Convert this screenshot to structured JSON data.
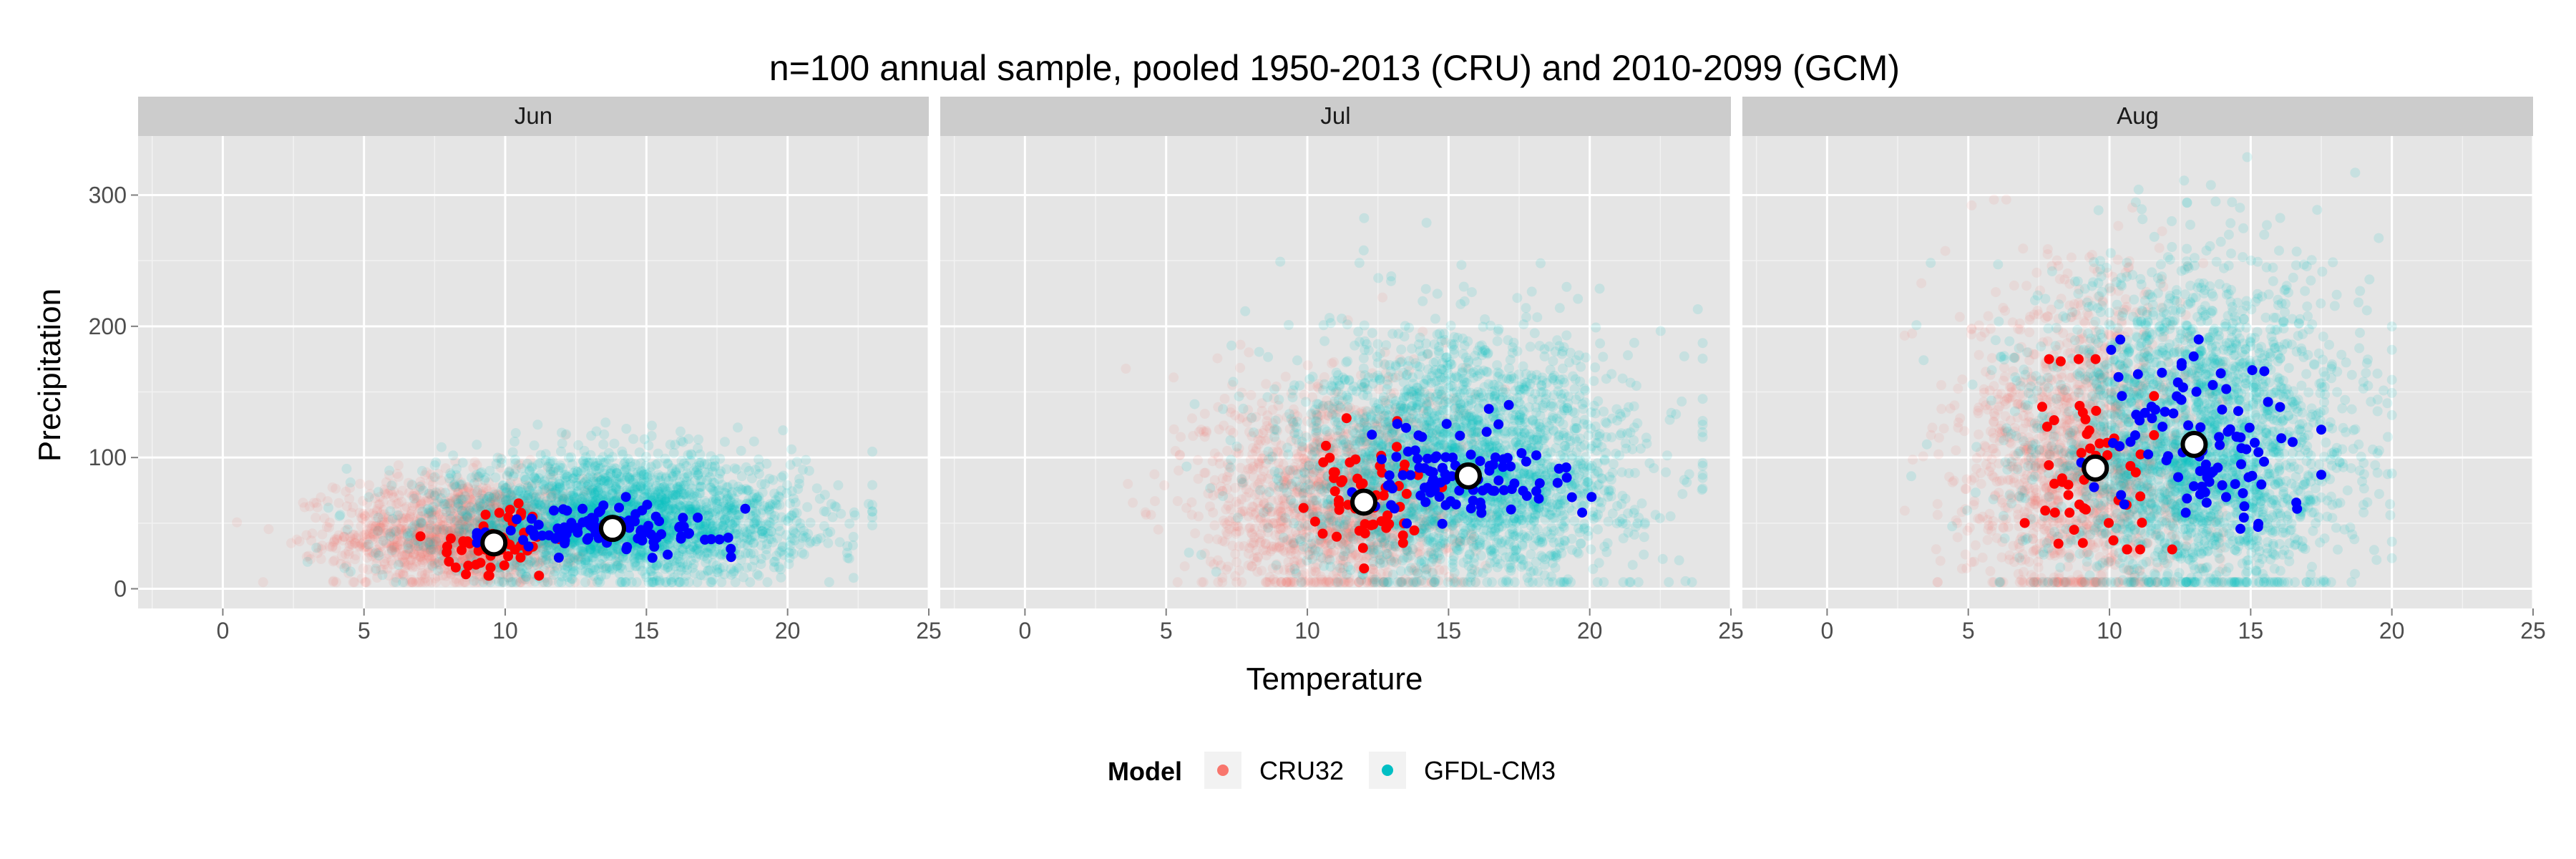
{
  "chart_data": {
    "type": "scatter",
    "title": "n=100 annual sample, pooled 1950-2013 (CRU) and 2010-2099 (GCM)",
    "xlabel": "Temperature",
    "ylabel": "Precipitation",
    "xlim": [
      -3,
      25
    ],
    "ylim": [
      -15,
      345
    ],
    "x_ticks": [
      0,
      5,
      10,
      15,
      20,
      25
    ],
    "y_ticks": [
      0,
      100,
      200,
      300
    ],
    "grid": true,
    "legend": {
      "title": "Model",
      "placement": "bottom",
      "entries": [
        {
          "label": "CRU32",
          "color": "#F8766D"
        },
        {
          "label": "GFDL-CM3",
          "color": "#00BFC4"
        }
      ]
    },
    "colors": {
      "cru_background": "#F8766D",
      "gcm_background": "#00BFC4",
      "cru_sample": "#FF0000",
      "gcm_sample": "#0000FF",
      "panel_background": "#E5E5E5",
      "strip_background": "#CCCCCC"
    },
    "panels": [
      {
        "name": "Jun",
        "series": [
          {
            "name": "CRU32",
            "type": "cloud",
            "mean": [
              8.5,
              40
            ],
            "sd": [
              2.2,
              18
            ],
            "range_x": [
              0.5,
              14
            ],
            "range_y": [
              5,
              150
            ],
            "count": 1500
          },
          {
            "name": "GFDL-CM3",
            "type": "cloud",
            "mean": [
              14,
              50
            ],
            "sd": [
              3.2,
              20
            ],
            "range_x": [
              3,
              23
            ],
            "range_y": [
              5,
              170
            ],
            "count": 2800
          },
          {
            "name": "CRU32",
            "type": "sample",
            "mean": [
              9.6,
              35
            ],
            "sd": [
              1,
              12
            ],
            "range_x": [
              7,
              12
            ],
            "range_y": [
              10,
              70
            ],
            "count": 60
          },
          {
            "name": "GFDL-CM3",
            "type": "sample",
            "mean": [
              13.8,
              46
            ],
            "sd": [
              2.2,
              8
            ],
            "range_x": [
              9,
              18.5
            ],
            "range_y": [
              20,
              70
            ],
            "count": 100
          }
        ],
        "centroids": [
          {
            "x": 9.6,
            "y": 35
          },
          {
            "x": 13.8,
            "y": 46
          }
        ]
      },
      {
        "name": "Jul",
        "series": [
          {
            "name": "CRU32",
            "type": "cloud",
            "mean": [
              11,
              65
            ],
            "sd": [
              2.3,
              38
            ],
            "range_x": [
              1,
              17
            ],
            "range_y": [
              5,
              290
            ],
            "count": 1500
          },
          {
            "name": "GFDL-CM3",
            "type": "cloud",
            "mean": [
              15.5,
              90
            ],
            "sd": [
              3,
              40
            ],
            "range_x": [
              4,
              24
            ],
            "range_y": [
              5,
              290
            ],
            "count": 2800
          },
          {
            "name": "CRU32",
            "type": "sample",
            "mean": [
              12,
              65
            ],
            "sd": [
              1,
              22
            ],
            "range_x": [
              9,
              15
            ],
            "range_y": [
              15,
              130
            ],
            "count": 60
          },
          {
            "name": "GFDL-CM3",
            "type": "sample",
            "mean": [
              15.7,
              85
            ],
            "sd": [
              1.8,
              18
            ],
            "range_x": [
              11,
              20.5
            ],
            "range_y": [
              40,
              140
            ],
            "count": 100
          }
        ],
        "centroids": [
          {
            "x": 12,
            "y": 66
          },
          {
            "x": 15.7,
            "y": 86
          }
        ]
      },
      {
        "name": "Aug",
        "series": [
          {
            "name": "CRU32",
            "type": "cloud",
            "mean": [
              9,
              95
            ],
            "sd": [
              2,
              55
            ],
            "range_x": [
              -1,
              14
            ],
            "range_y": [
              5,
              340
            ],
            "count": 1500
          },
          {
            "name": "GFDL-CM3",
            "type": "cloud",
            "mean": [
              13,
              105
            ],
            "sd": [
              2.7,
              55
            ],
            "range_x": [
              0,
              20
            ],
            "range_y": [
              5,
              365
            ],
            "count": 2800
          },
          {
            "name": "CRU32",
            "type": "sample",
            "mean": [
              9.5,
              90
            ],
            "sd": [
              1.2,
              35
            ],
            "range_x": [
              6,
              12.5
            ],
            "range_y": [
              30,
              175
            ],
            "count": 60
          },
          {
            "name": "GFDL-CM3",
            "type": "sample",
            "mean": [
              13.3,
              108
            ],
            "sd": [
              2,
              30
            ],
            "range_x": [
              9,
              17.5
            ],
            "range_y": [
              35,
              190
            ],
            "count": 100
          }
        ],
        "centroids": [
          {
            "x": 9.5,
            "y": 92
          },
          {
            "x": 13,
            "y": 110
          }
        ]
      }
    ]
  }
}
